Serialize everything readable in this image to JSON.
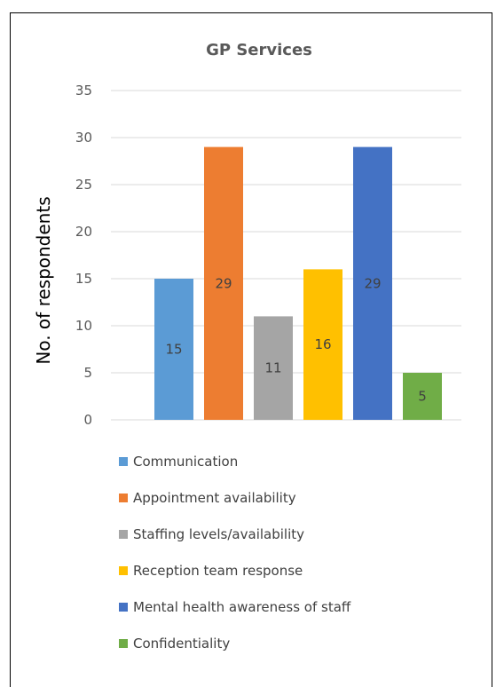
{
  "chart_data": {
    "type": "bar",
    "title": "GP Services",
    "ylabel": "No. of respondents",
    "xlabel": "",
    "ylim": [
      0,
      35
    ],
    "yticks": [
      0,
      5,
      10,
      15,
      20,
      25,
      30,
      35
    ],
    "grid": true,
    "legend_position": "bottom",
    "categories": [
      "Communication",
      "Appointment availability",
      "Staffing levels/availability",
      "Reception team response",
      "Mental health awareness of staff",
      "Confidentiality"
    ],
    "values": [
      15,
      29,
      11,
      16,
      29,
      5
    ],
    "colors": [
      "#5b9bd5",
      "#ed7d31",
      "#a5a5a5",
      "#ffc000",
      "#4472c4",
      "#70ad47"
    ],
    "data_labels": [
      "15",
      "29",
      "11",
      "16",
      "29",
      "5"
    ]
  }
}
